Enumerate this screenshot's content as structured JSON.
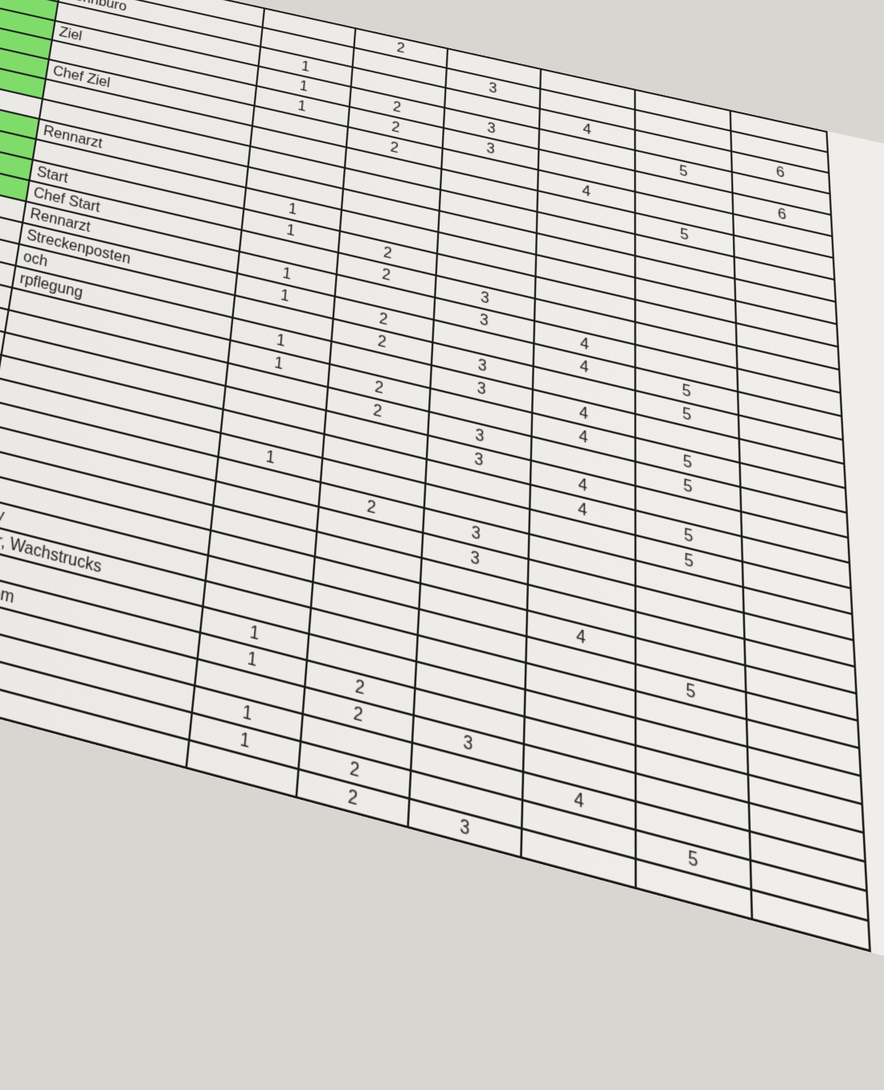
{
  "highlight_color": "#7fdc6a",
  "columns": [
    "1",
    "2",
    "3",
    "4",
    "5",
    "6"
  ],
  "rows": [
    {
      "label": "Rennbüro",
      "hl": true,
      "marks": [
        "",
        "2",
        "",
        "",
        "",
        ""
      ]
    },
    {
      "label": "Rennbüro",
      "hl": true,
      "marks": [
        "",
        "",
        "3",
        "",
        "",
        ""
      ]
    },
    {
      "label": "",
      "hl": true,
      "marks": [
        "1",
        "",
        "",
        "4",
        "",
        "6"
      ]
    },
    {
      "label": "Ziel",
      "hl": true,
      "marks": [
        "1",
        "2",
        "3",
        "",
        "5",
        ""
      ]
    },
    {
      "label": "",
      "hl": true,
      "marks": [
        "1",
        "2",
        "3",
        "",
        "",
        "6"
      ]
    },
    {
      "label": "Chef Ziel",
      "hl": true,
      "marks": [
        "",
        "2",
        "",
        "4",
        "",
        ""
      ]
    },
    {
      "label": "",
      "hl": true,
      "marks": [
        "",
        "",
        "",
        "",
        "5",
        ""
      ]
    },
    {
      "label": "",
      "hl": false,
      "marks": [
        "",
        "",
        "",
        "",
        "",
        ""
      ]
    },
    {
      "label": "Rennarzt",
      "hl": true,
      "marks": [
        "",
        "",
        "",
        "",
        "",
        ""
      ]
    },
    {
      "label": "",
      "hl": true,
      "marks": [
        "1",
        "",
        "",
        "",
        "",
        ""
      ]
    },
    {
      "label": "Start",
      "hl": true,
      "marks": [
        "1",
        "2",
        "",
        "",
        "",
        ""
      ]
    },
    {
      "label": "Chef Start",
      "hl": true,
      "marks": [
        "",
        "2",
        "3",
        "",
        "",
        ""
      ]
    },
    {
      "label": "Rennarzt",
      "hl": false,
      "marks": [
        "1",
        "",
        "3",
        "4",
        "",
        ""
      ]
    },
    {
      "label": "Streckenposten",
      "hl": false,
      "marks": [
        "1",
        "2",
        "",
        "4",
        "5",
        ""
      ]
    },
    {
      "label": "och",
      "hl": false,
      "marks": [
        "",
        "2",
        "3",
        "",
        "5",
        ""
      ]
    },
    {
      "label": "rpflegung",
      "hl": false,
      "marks": [
        "1",
        "",
        "3",
        "4",
        "",
        ""
      ]
    },
    {
      "label": "",
      "hl": false,
      "marks": [
        "1",
        "2",
        "",
        "4",
        "5",
        ""
      ]
    },
    {
      "label": "",
      "hl": false,
      "marks": [
        "",
        "2",
        "3",
        "",
        "5",
        ""
      ]
    },
    {
      "label": "",
      "hl": false,
      "marks": [
        "",
        "",
        "3",
        "4",
        "",
        ""
      ]
    },
    {
      "label": "",
      "hl": false,
      "marks": [
        "",
        "",
        "",
        "4",
        "5",
        ""
      ]
    },
    {
      "label": "",
      "hl": false,
      "marks": [
        "1",
        "",
        "",
        "",
        "5",
        ""
      ]
    },
    {
      "label": "",
      "hl": false,
      "marks": [
        "",
        "2",
        "3",
        "",
        "",
        ""
      ]
    },
    {
      "label": "",
      "hl": false,
      "marks": [
        "",
        "",
        "3",
        "",
        "",
        ""
      ]
    },
    {
      "label": "",
      "hl": false,
      "marks": [
        "",
        "",
        "",
        "",
        "",
        ""
      ]
    },
    {
      "label": "",
      "hl": false,
      "marks": [
        "",
        "",
        "",
        "4",
        "",
        ""
      ]
    },
    {
      "label": "my",
      "hl": false,
      "marks": [
        "",
        "",
        "",
        "",
        "5",
        ""
      ]
    },
    {
      "label": "ner, Wachstrucks",
      "hl": false,
      "marks": [
        "",
        "",
        "",
        "",
        "",
        ""
      ]
    },
    {
      "label": "",
      "hl": false,
      "marks": [
        "1",
        "",
        "",
        "",
        "",
        ""
      ]
    },
    {
      "label": "Strom",
      "hl": false,
      "marks": [
        "1",
        "2",
        "",
        "",
        "",
        ""
      ]
    },
    {
      "label": "",
      "hl": false,
      "marks": [
        "",
        "2",
        "3",
        "",
        "",
        ""
      ]
    },
    {
      "label": "",
      "hl": false,
      "marks": [
        "1",
        "",
        "",
        "4",
        "",
        ""
      ]
    },
    {
      "label": "",
      "hl": false,
      "marks": [
        "1",
        "2",
        "",
        "",
        "5",
        ""
      ]
    },
    {
      "label": "",
      "hl": false,
      "marks": [
        "",
        "2",
        "3",
        "",
        "",
        ""
      ]
    }
  ]
}
